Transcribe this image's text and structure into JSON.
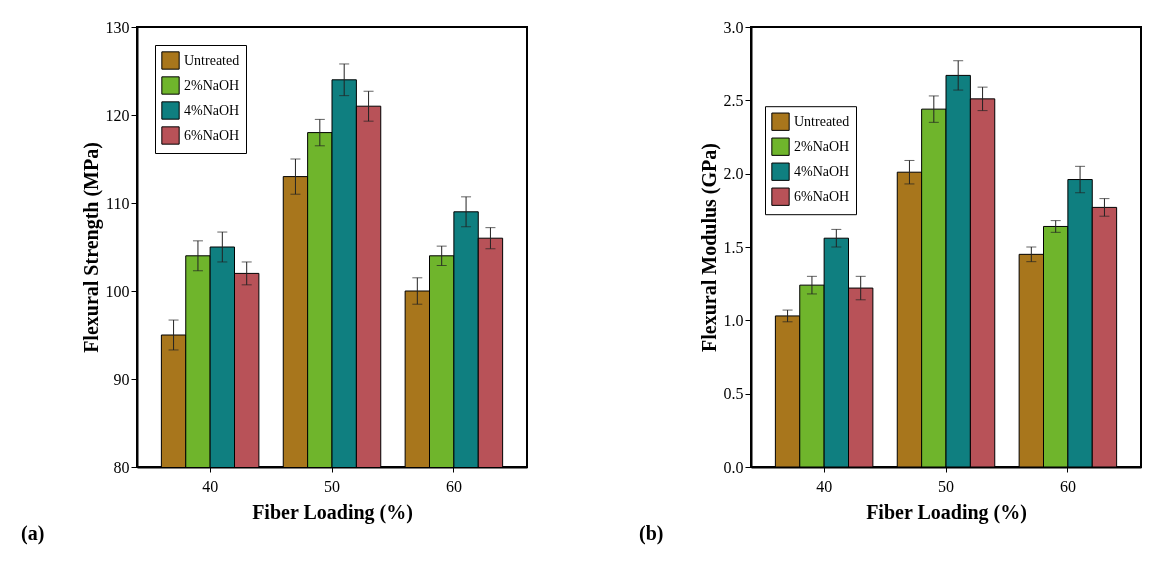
{
  "chart_data": [
    {
      "type": "bar",
      "xlabel": "Fiber Loading (%)",
      "ylabel": "Flexural Strength (MPa)",
      "categories": [
        "40",
        "50",
        "60"
      ],
      "series": [
        {
          "name": "Untreated",
          "color": "#a8761c",
          "values": [
            95,
            113,
            100
          ],
          "errors": [
            1.7,
            2,
            1.5
          ]
        },
        {
          "name": "2%NaOH",
          "color": "#6fb52c",
          "values": [
            104,
            118,
            104
          ],
          "errors": [
            1.7,
            1.5,
            1.1
          ]
        },
        {
          "name": "4%NaOH",
          "color": "#0f7f80",
          "values": [
            105,
            124,
            109
          ],
          "errors": [
            1.7,
            1.8,
            1.7
          ]
        },
        {
          "name": "6%NaOH",
          "color": "#b85258",
          "values": [
            102,
            121,
            106
          ],
          "errors": [
            1.3,
            1.7,
            1.2
          ]
        }
      ],
      "ylim": [
        80,
        130
      ],
      "yticks": [
        80,
        90,
        100,
        110,
        120,
        130
      ],
      "legend": "top left",
      "annotations": [
        "(a)"
      ]
    },
    {
      "type": "bar",
      "xlabel": "Fiber Loading (%)",
      "ylabel": "Flexural Modulus (GPa)",
      "categories": [
        "40",
        "50",
        "60"
      ],
      "series": [
        {
          "name": "Untreated",
          "color": "#a8761c",
          "values": [
            1.03,
            2.01,
            1.45
          ],
          "errors": [
            0.04,
            0.08,
            0.05
          ]
        },
        {
          "name": "2%NaOH",
          "color": "#6fb52c",
          "values": [
            1.24,
            2.44,
            1.64
          ],
          "errors": [
            0.06,
            0.09,
            0.04
          ]
        },
        {
          "name": "4%NaOH",
          "color": "#0f7f80",
          "values": [
            1.56,
            2.67,
            1.96
          ],
          "errors": [
            0.06,
            0.1,
            0.09
          ]
        },
        {
          "name": "6%NaOH",
          "color": "#b85258",
          "values": [
            1.22,
            2.51,
            1.77
          ],
          "errors": [
            0.08,
            0.08,
            0.06
          ]
        }
      ],
      "ylim": [
        0,
        3
      ],
      "yticks": [
        {
          "value": 0,
          "label": "0.0"
        },
        {
          "value": 0.5,
          "label": "0.5"
        },
        {
          "value": 1,
          "label": "1.0"
        },
        {
          "value": 1.5,
          "label": "1.5"
        },
        {
          "value": 2,
          "label": "2.0"
        },
        {
          "value": 2.5,
          "label": "2.5"
        },
        {
          "value": 3,
          "label": "3.0"
        }
      ],
      "legend": "left",
      "annotations": [
        "(b)"
      ]
    }
  ]
}
